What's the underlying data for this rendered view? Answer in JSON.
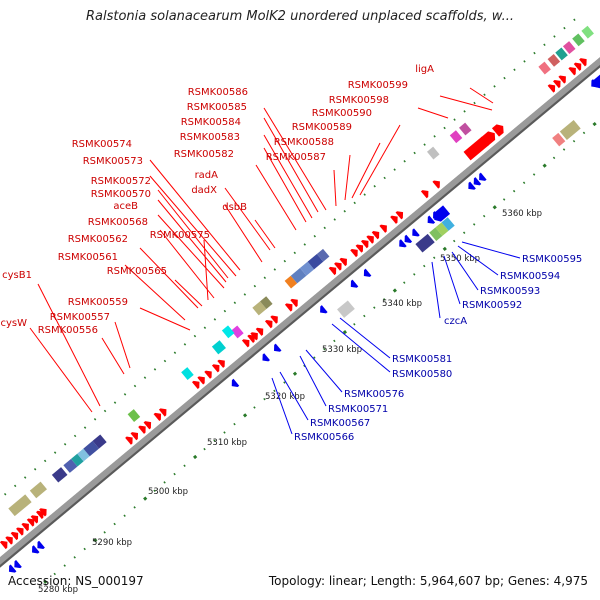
{
  "title": "Ralstonia solanacearum MolK2 unordered unplaced scaffolds, w...",
  "footer": {
    "accession": "Accession: NS_000197",
    "topology": "Topology: linear; Length: 5,964,607 bp; Genes: 4,975"
  },
  "colors": {
    "forward_gene": "#ff0000",
    "reverse_gene": "#0000ee",
    "forward_label": "#cc0000",
    "reverse_label": "#0000aa",
    "backbone": "#9a9a9a",
    "tick_dot": "#2a7a2a"
  },
  "scale": {
    "ticks": [
      "5280 kbp",
      "5290 kbp",
      "5300 kbp",
      "5310 kbp",
      "5320 kbp",
      "5330 kbp",
      "5340 kbp",
      "5350 kbp",
      "5360 kbp"
    ]
  },
  "forward_labels": [
    "ligA",
    "RSMK00599",
    "RSMK00598",
    "RSMK00590",
    "RSMK00589",
    "RSMK00588",
    "RSMK00587",
    "RSMK00586",
    "RSMK00585",
    "RSMK00584",
    "RSMK00583",
    "RSMK00582",
    "RSMK00574",
    "RSMK00573",
    "radA",
    "dadX",
    "RSMK00572",
    "RSMK00570",
    "dsbB",
    "aceB",
    "RSMK00568",
    "RSMK00575",
    "RSMK00562",
    "RSMK00561",
    "RSMK00565",
    "RSMK00559",
    "cysB1",
    "RSMK00557",
    "cysW",
    "RSMK00556"
  ],
  "reverse_labels": [
    "RSMK00595",
    "RSMK00594",
    "RSMK00593",
    "RSMK00592",
    "czcA",
    "RSMK00581",
    "RSMK00580",
    "RSMK00576",
    "RSMK00571",
    "RSMK00567",
    "RSMK00566"
  ]
}
